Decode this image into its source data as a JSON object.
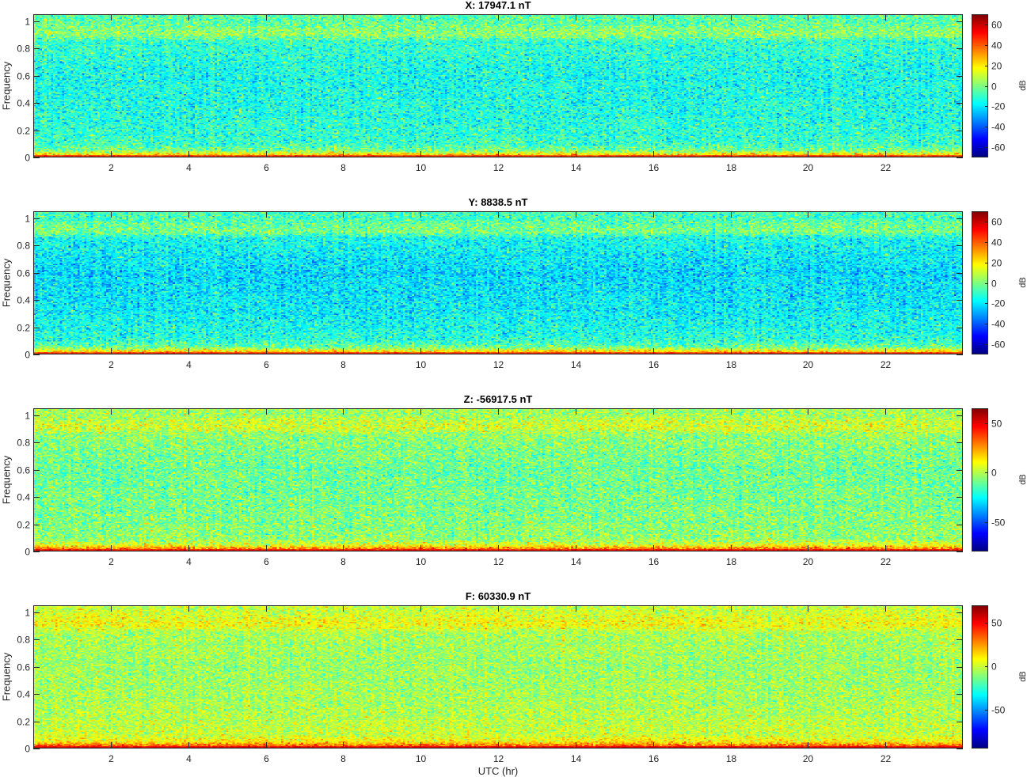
{
  "chart_data": [
    {
      "type": "heatmap",
      "title": "X: 17947.1 nT",
      "xlabel": "",
      "ylabel": "Frequency",
      "colorbar_label": "dB",
      "xlim": [
        0,
        24
      ],
      "ylim": [
        0,
        1.05
      ],
      "x_ticks": [
        2,
        4,
        6,
        8,
        10,
        12,
        14,
        16,
        18,
        20,
        22
      ],
      "y_ticks": [
        0,
        0.2,
        0.4,
        0.6,
        0.8,
        1
      ],
      "y_tick_labels": [
        "0",
        "0.2",
        "0.4",
        "0.6",
        "0.8",
        "1"
      ],
      "clim": [
        -70,
        70
      ],
      "colorbar_ticks": [
        -60,
        -40,
        -20,
        0,
        20,
        40,
        60
      ],
      "colormap": "jet",
      "profile": {
        "frequency": [
          0,
          0.02,
          0.05,
          0.1,
          0.3,
          0.6,
          0.85,
          0.9,
          0.95,
          1.0
        ],
        "level_db": [
          70,
          25,
          0,
          -10,
          -13,
          -15,
          -10,
          3,
          0,
          -5
        ]
      }
    },
    {
      "type": "heatmap",
      "title": "Y: 8838.5 nT",
      "xlabel": "",
      "ylabel": "Frequency",
      "colorbar_label": "dB",
      "xlim": [
        0,
        24
      ],
      "ylim": [
        0,
        1.05
      ],
      "x_ticks": [
        2,
        4,
        6,
        8,
        10,
        12,
        14,
        16,
        18,
        20,
        22
      ],
      "y_ticks": [
        0,
        0.2,
        0.4,
        0.6,
        0.8,
        1
      ],
      "y_tick_labels": [
        "0",
        "0.2",
        "0.4",
        "0.6",
        "0.8",
        "1"
      ],
      "clim": [
        -70,
        70
      ],
      "colorbar_ticks": [
        -60,
        -40,
        -20,
        0,
        20,
        40,
        60
      ],
      "colormap": "jet",
      "profile": {
        "frequency": [
          0,
          0.02,
          0.05,
          0.1,
          0.3,
          0.6,
          0.85,
          0.9,
          0.95,
          1.0
        ],
        "level_db": [
          70,
          25,
          0,
          -12,
          -18,
          -22,
          -15,
          0,
          -3,
          -8
        ]
      }
    },
    {
      "type": "heatmap",
      "title": "Z: -56917.5 nT",
      "xlabel": "",
      "ylabel": "Frequency",
      "colorbar_label": "dB",
      "xlim": [
        0,
        24
      ],
      "ylim": [
        0,
        1.05
      ],
      "x_ticks": [
        2,
        4,
        6,
        8,
        10,
        12,
        14,
        16,
        18,
        20,
        22
      ],
      "y_ticks": [
        0,
        0.2,
        0.4,
        0.6,
        0.8,
        1
      ],
      "y_tick_labels": [
        "0",
        "0.2",
        "0.4",
        "0.6",
        "0.8",
        "1"
      ],
      "clim": [
        -80,
        65
      ],
      "colorbar_ticks": [
        -50,
        0,
        50
      ],
      "colormap": "jet",
      "profile": {
        "frequency": [
          0,
          0.02,
          0.05,
          0.1,
          0.3,
          0.6,
          0.85,
          0.9,
          0.95,
          1.0
        ],
        "level_db": [
          65,
          30,
          5,
          -5,
          -8,
          -10,
          -5,
          5,
          3,
          -2
        ]
      }
    },
    {
      "type": "heatmap",
      "title": "F: 60330.9 nT",
      "xlabel": "UTC (hr)",
      "ylabel": "Frequency",
      "colorbar_label": "dB",
      "xlim": [
        0,
        24
      ],
      "ylim": [
        0,
        1.05
      ],
      "x_ticks": [
        2,
        4,
        6,
        8,
        10,
        12,
        14,
        16,
        18,
        20,
        22
      ],
      "y_ticks": [
        0,
        0.2,
        0.4,
        0.6,
        0.8,
        1
      ],
      "y_tick_labels": [
        "0",
        "0.2",
        "0.4",
        "0.6",
        "0.8",
        "1"
      ],
      "clim": [
        -95,
        70
      ],
      "colorbar_ticks": [
        -50,
        0,
        50
      ],
      "colormap": "jet",
      "profile": {
        "frequency": [
          0,
          0.02,
          0.05,
          0.1,
          0.3,
          0.6,
          0.85,
          0.9,
          0.95,
          1.0
        ],
        "level_db": [
          70,
          35,
          10,
          0,
          -5,
          -8,
          -5,
          8,
          5,
          0
        ]
      }
    }
  ]
}
